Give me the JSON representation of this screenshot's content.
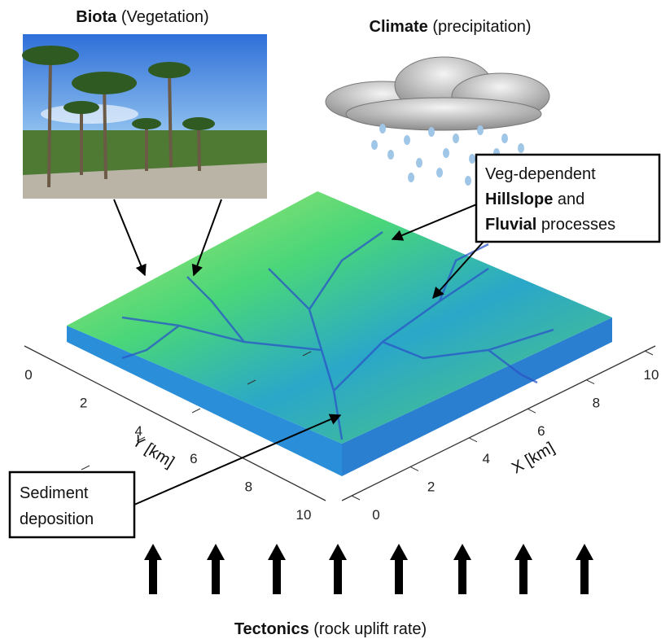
{
  "biota_title": {
    "bold": "Biota",
    "rest": "(Vegetation)"
  },
  "climate_title": {
    "bold": "Climate",
    "rest": "(precipitation)"
  },
  "process_box": {
    "line1": "Veg-dependent",
    "hillslope": "Hillslope",
    "and": "and",
    "fluvial": "Fluvial",
    "processes": "processes"
  },
  "sediment_box": {
    "line1": "Sediment",
    "line2": "deposition"
  },
  "tectonics_title": {
    "bold": "Tectonics",
    "rest": "(rock uplift rate)"
  },
  "x_axis": {
    "label": "X [km]",
    "ticks": [
      "0",
      "2",
      "4",
      "6",
      "8",
      "10"
    ]
  },
  "y_axis": {
    "label": "Y [km]",
    "ticks": [
      "0",
      "2",
      "4",
      "6",
      "8",
      "10"
    ]
  }
}
